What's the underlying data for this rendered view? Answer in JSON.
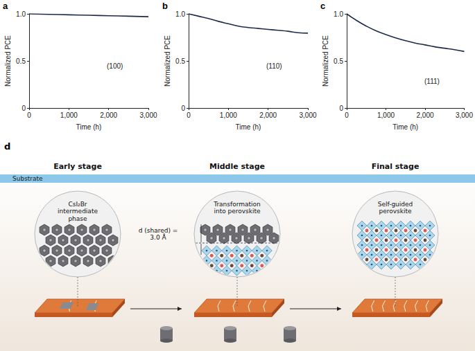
{
  "chart_data": [
    {
      "panel": "a",
      "type": "line",
      "annotation": "(100)",
      "xlabel": "Time (h)",
      "ylabel": "Normalized PCE",
      "x": [
        0,
        500,
        1000,
        1500,
        2000,
        2500,
        3000
      ],
      "series": [
        {
          "color": "#1b2a4a",
          "values": [
            1.0,
            0.995,
            0.99,
            0.985,
            0.98,
            0.975,
            0.97
          ]
        }
      ],
      "xlim": [
        0,
        3000
      ],
      "ylim": [
        0,
        1
      ],
      "xticks": [
        0,
        {
          "value": 1000,
          "label": "1,000"
        },
        {
          "value": 2000,
          "label": "2,000"
        },
        {
          "value": 3000,
          "label": "3,000"
        }
      ],
      "yticks": [
        0,
        0.5,
        {
          "value": 1,
          "label": "1.0"
        }
      ],
      "grid": false
    },
    {
      "panel": "b",
      "type": "line",
      "annotation": "(110)",
      "xlabel": "Time (h)",
      "ylabel": "Normalized PCE",
      "x": [
        0,
        250,
        500,
        750,
        1000,
        1250,
        1500,
        1750,
        2000,
        2250,
        2500,
        2750,
        3000
      ],
      "series": [
        {
          "color": "#1b2a4a",
          "values": [
            1.0,
            0.975,
            0.95,
            0.92,
            0.895,
            0.87,
            0.855,
            0.845,
            0.835,
            0.825,
            0.815,
            0.8,
            0.795
          ]
        }
      ],
      "xlim": [
        0,
        3000
      ],
      "ylim": [
        0,
        1
      ],
      "xticks": [
        0,
        {
          "value": 1000,
          "label": "1,000"
        },
        {
          "value": 2000,
          "label": "2,000"
        },
        {
          "value": 3000,
          "label": "3,000"
        }
      ],
      "yticks": [
        0,
        0.5,
        {
          "value": 1,
          "label": "1.0"
        }
      ],
      "grid": false
    },
    {
      "panel": "c",
      "type": "line",
      "annotation": "(111)",
      "xlabel": "Time (h)",
      "ylabel": "Normalized PCE",
      "x": [
        0,
        250,
        500,
        750,
        1000,
        1250,
        1500,
        1750,
        2000,
        2250,
        2500,
        2750,
        3000
      ],
      "series": [
        {
          "color": "#1b2a4a",
          "values": [
            1.0,
            0.93,
            0.87,
            0.82,
            0.78,
            0.745,
            0.715,
            0.69,
            0.67,
            0.65,
            0.635,
            0.62,
            0.6
          ]
        }
      ],
      "xlim": [
        0,
        3000
      ],
      "ylim": [
        0,
        1
      ],
      "xticks": [
        0,
        {
          "value": 1000,
          "label": "1,000"
        },
        {
          "value": 2000,
          "label": "2,000"
        },
        {
          "value": 3000,
          "label": "3,000"
        }
      ],
      "yticks": [
        0,
        0.5,
        {
          "value": 1,
          "label": "1.0"
        }
      ],
      "grid": false
    }
  ],
  "diagram": {
    "panel": "d",
    "substrate": "Substrate",
    "stages": [
      {
        "title": "Early stage",
        "label": "CsI₂Br intermediate phase"
      },
      {
        "title": "Middle stage",
        "label": "Transformation into perovskite"
      },
      {
        "title": "Final stage",
        "label": "Self-guided perovskite"
      }
    ],
    "spacing_label": "d (shared) = 3.0 Å"
  }
}
